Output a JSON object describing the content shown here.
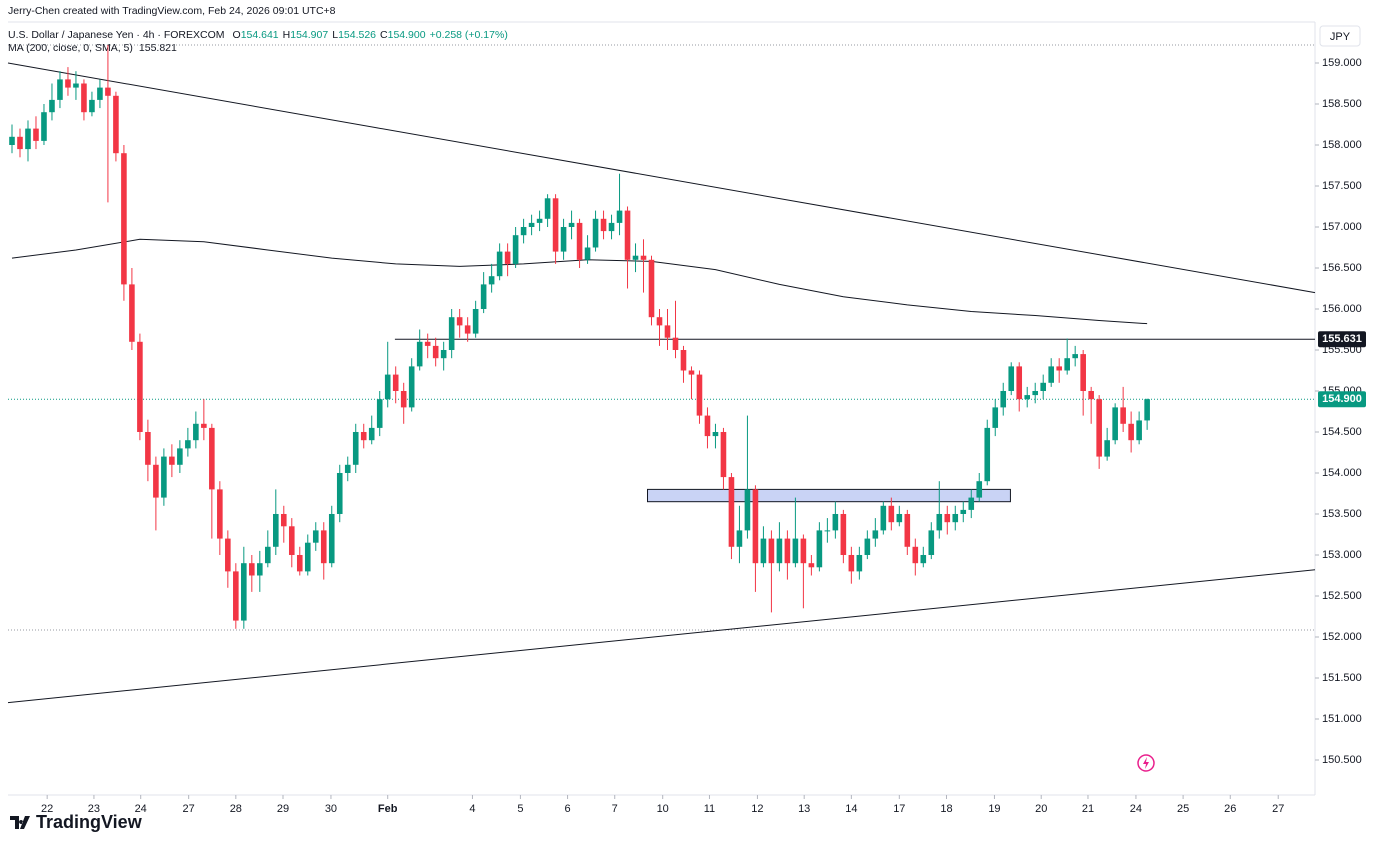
{
  "header": {
    "credit": "Jerry-Chen created with TradingView.com, Feb 24, 2026 09:01 UTC+8"
  },
  "legend": {
    "symbol": "U.S. Dollar / Japanese Yen · 4h · FOREXCOM",
    "ohlc": [
      {
        "k": "O",
        "v": "154.641"
      },
      {
        "k": "H",
        "v": "154.907"
      },
      {
        "k": "L",
        "v": "154.526"
      },
      {
        "k": "C",
        "v": "154.900"
      }
    ],
    "change": "+0.258 (+0.17%)",
    "ma_label": "MA (200, close, 0, SMA, 5)",
    "ma_value": "155.821"
  },
  "currency": "JPY",
  "brand": "TradingView",
  "chart_data": {
    "type": "candlestick",
    "up_color": "#089981",
    "down_color": "#f23645",
    "xlim": [
      -0.5,
      163
    ],
    "ylim": [
      150.073,
      159.5
    ],
    "yticks": [
      {
        "value": 150.5,
        "label": "150.500"
      },
      {
        "value": 151,
        "label": "151.000"
      },
      {
        "value": 151.5,
        "label": "151.500"
      },
      {
        "value": 152,
        "label": "152.000"
      },
      {
        "value": 152.5,
        "label": "152.500"
      },
      {
        "value": 153,
        "label": "153.000"
      },
      {
        "value": 153.5,
        "label": "153.500"
      },
      {
        "value": 154,
        "label": "154.000"
      },
      {
        "value": 154.5,
        "label": "154.500"
      },
      {
        "value": 155,
        "label": "155.000"
      },
      {
        "value": 155.5,
        "label": "155.500"
      },
      {
        "value": 156,
        "label": "156.000"
      },
      {
        "value": 156.5,
        "label": "156.500"
      },
      {
        "value": 157,
        "label": "157.000"
      },
      {
        "value": 157.5,
        "label": "157.500"
      },
      {
        "value": 158,
        "label": "158.000"
      },
      {
        "value": 158.5,
        "label": "158.500"
      },
      {
        "value": 159,
        "label": "159.000"
      }
    ],
    "xticks": [
      {
        "value": 4.4,
        "label": "22"
      },
      {
        "value": 10.25,
        "label": "23"
      },
      {
        "value": 16.1,
        "label": "24"
      },
      {
        "value": 22.1,
        "label": "27"
      },
      {
        "value": 28,
        "label": "28"
      },
      {
        "value": 33.9,
        "label": "29"
      },
      {
        "value": 39.9,
        "label": "30"
      },
      {
        "value": 47,
        "label": "Feb"
      },
      {
        "value": 57.6,
        "label": "4"
      },
      {
        "value": 63.6,
        "label": "5"
      },
      {
        "value": 69.5,
        "label": "6"
      },
      {
        "value": 75.4,
        "label": "7"
      },
      {
        "value": 81.4,
        "label": "10"
      },
      {
        "value": 87.25,
        "label": "11"
      },
      {
        "value": 93.25,
        "label": "12"
      },
      {
        "value": 99.1,
        "label": "13"
      },
      {
        "value": 105,
        "label": "14"
      },
      {
        "value": 111,
        "label": "17"
      },
      {
        "value": 116.9,
        "label": "18"
      },
      {
        "value": 122.9,
        "label": "19"
      },
      {
        "value": 128.75,
        "label": "20"
      },
      {
        "value": 134.6,
        "label": "21"
      },
      {
        "value": 140.6,
        "label": "24"
      },
      {
        "value": 146.5,
        "label": "25"
      },
      {
        "value": 152.4,
        "label": "26"
      },
      {
        "value": 158.4,
        "label": "27"
      }
    ],
    "ohlc": [
      [
        158.0,
        158.25,
        157.9,
        158.1
      ],
      [
        158.1,
        158.2,
        157.85,
        157.95
      ],
      [
        157.95,
        158.3,
        157.8,
        158.2
      ],
      [
        158.2,
        158.35,
        157.95,
        158.05
      ],
      [
        158.05,
        158.5,
        158.0,
        158.4
      ],
      [
        158.4,
        158.75,
        158.3,
        158.55
      ],
      [
        158.55,
        158.9,
        158.45,
        158.8
      ],
      [
        158.8,
        158.95,
        158.6,
        158.7
      ],
      [
        158.7,
        158.9,
        158.55,
        158.75
      ],
      [
        158.75,
        158.8,
        158.3,
        158.4
      ],
      [
        158.4,
        158.65,
        158.35,
        158.55
      ],
      [
        158.55,
        158.8,
        158.45,
        158.7
      ],
      [
        158.7,
        159.22,
        157.3,
        158.6
      ],
      [
        158.6,
        158.65,
        157.8,
        157.9
      ],
      [
        157.9,
        158.0,
        156.1,
        156.3
      ],
      [
        156.3,
        156.5,
        155.5,
        155.6
      ],
      [
        155.6,
        155.7,
        154.4,
        154.5
      ],
      [
        154.5,
        154.65,
        153.9,
        154.1
      ],
      [
        154.1,
        154.2,
        153.3,
        153.7
      ],
      [
        153.7,
        154.3,
        153.6,
        154.2
      ],
      [
        154.2,
        154.35,
        153.95,
        154.1
      ],
      [
        154.1,
        154.4,
        154.0,
        154.3
      ],
      [
        154.3,
        154.55,
        154.2,
        154.4
      ],
      [
        154.4,
        154.75,
        154.3,
        154.6
      ],
      [
        154.6,
        154.9,
        154.4,
        154.55
      ],
      [
        154.55,
        154.6,
        153.2,
        153.8
      ],
      [
        153.8,
        153.9,
        153.0,
        153.2
      ],
      [
        153.2,
        153.3,
        152.6,
        152.8
      ],
      [
        152.8,
        152.9,
        152.1,
        152.2
      ],
      [
        152.2,
        153.1,
        152.1,
        152.9
      ],
      [
        152.9,
        153.0,
        152.55,
        152.75
      ],
      [
        152.75,
        153.05,
        152.55,
        152.9
      ],
      [
        152.9,
        153.3,
        152.85,
        153.1
      ],
      [
        153.1,
        153.8,
        153.0,
        153.5
      ],
      [
        153.5,
        153.6,
        153.15,
        153.35
      ],
      [
        153.35,
        153.45,
        152.85,
        153.0
      ],
      [
        153.0,
        153.1,
        152.75,
        152.8
      ],
      [
        152.8,
        153.25,
        152.75,
        153.15
      ],
      [
        153.15,
        153.4,
        153.05,
        153.3
      ],
      [
        153.3,
        153.4,
        152.7,
        152.9
      ],
      [
        152.9,
        153.6,
        152.85,
        153.5
      ],
      [
        153.5,
        154.1,
        153.4,
        154.0
      ],
      [
        154.0,
        154.2,
        153.9,
        154.1
      ],
      [
        154.1,
        154.6,
        154.0,
        154.5
      ],
      [
        154.5,
        154.6,
        154.3,
        154.4
      ],
      [
        154.4,
        154.7,
        154.35,
        154.55
      ],
      [
        154.55,
        155.0,
        154.45,
        154.9
      ],
      [
        154.9,
        155.6,
        154.8,
        155.2
      ],
      [
        155.2,
        155.3,
        154.85,
        155.0
      ],
      [
        155.0,
        155.1,
        154.6,
        154.8
      ],
      [
        154.8,
        155.4,
        154.75,
        155.3
      ],
      [
        155.3,
        155.75,
        155.25,
        155.6
      ],
      [
        155.6,
        155.7,
        155.4,
        155.55
      ],
      [
        155.55,
        155.65,
        155.3,
        155.4
      ],
      [
        155.4,
        155.6,
        155.25,
        155.5
      ],
      [
        155.5,
        156.0,
        155.4,
        155.9
      ],
      [
        155.9,
        156.0,
        155.65,
        155.8
      ],
      [
        155.8,
        155.9,
        155.6,
        155.7
      ],
      [
        155.7,
        156.1,
        155.65,
        156.0
      ],
      [
        156.0,
        156.45,
        155.95,
        156.3
      ],
      [
        156.3,
        156.55,
        156.2,
        156.4
      ],
      [
        156.4,
        156.8,
        156.35,
        156.7
      ],
      [
        156.7,
        156.8,
        156.4,
        156.55
      ],
      [
        156.55,
        157.0,
        156.5,
        156.9
      ],
      [
        156.9,
        157.1,
        156.8,
        157.0
      ],
      [
        157.0,
        157.15,
        156.9,
        157.05
      ],
      [
        157.05,
        157.2,
        156.95,
        157.1
      ],
      [
        157.1,
        157.4,
        157.0,
        157.35
      ],
      [
        157.35,
        157.4,
        156.55,
        156.7
      ],
      [
        156.7,
        157.1,
        156.6,
        157.0
      ],
      [
        157.0,
        157.2,
        156.85,
        157.05
      ],
      [
        157.05,
        157.1,
        156.5,
        156.6
      ],
      [
        156.6,
        156.9,
        156.55,
        156.75
      ],
      [
        156.75,
        157.2,
        156.7,
        157.1
      ],
      [
        157.1,
        157.2,
        156.85,
        156.95
      ],
      [
        156.95,
        157.15,
        156.85,
        157.05
      ],
      [
        157.05,
        157.65,
        156.9,
        157.2
      ],
      [
        157.2,
        157.25,
        156.25,
        156.6
      ],
      [
        156.6,
        156.8,
        156.45,
        156.65
      ],
      [
        156.65,
        156.85,
        156.2,
        156.6
      ],
      [
        156.6,
        156.65,
        155.8,
        155.9
      ],
      [
        155.9,
        156.0,
        155.55,
        155.8
      ],
      [
        155.8,
        156.0,
        155.5,
        155.65
      ],
      [
        155.65,
        156.1,
        155.4,
        155.5
      ],
      [
        155.5,
        155.55,
        155.1,
        155.25
      ],
      [
        155.25,
        155.3,
        154.9,
        155.2
      ],
      [
        155.2,
        155.25,
        154.6,
        154.7
      ],
      [
        154.7,
        154.8,
        154.3,
        154.45
      ],
      [
        154.45,
        154.6,
        154.3,
        154.5
      ],
      [
        154.5,
        154.55,
        153.8,
        153.95
      ],
      [
        153.95,
        154.0,
        152.95,
        153.1
      ],
      [
        153.1,
        153.6,
        152.9,
        153.3
      ],
      [
        153.3,
        154.7,
        153.2,
        153.8
      ],
      [
        153.8,
        153.85,
        152.55,
        152.9
      ],
      [
        152.9,
        153.35,
        152.85,
        153.2
      ],
      [
        153.2,
        153.3,
        152.3,
        152.9
      ],
      [
        152.9,
        153.4,
        152.8,
        153.2
      ],
      [
        153.2,
        153.3,
        152.7,
        152.9
      ],
      [
        152.9,
        153.7,
        152.85,
        153.2
      ],
      [
        153.2,
        153.25,
        152.35,
        152.9
      ],
      [
        152.9,
        153.0,
        152.75,
        152.85
      ],
      [
        152.85,
        153.4,
        152.8,
        153.3
      ],
      [
        153.3,
        153.45,
        153.15,
        153.3
      ],
      [
        153.3,
        153.65,
        153.2,
        153.5
      ],
      [
        153.5,
        153.55,
        152.9,
        153.0
      ],
      [
        153.0,
        153.1,
        152.65,
        152.8
      ],
      [
        152.8,
        153.1,
        152.7,
        153.0
      ],
      [
        153.0,
        153.3,
        152.95,
        153.2
      ],
      [
        153.2,
        153.45,
        153.1,
        153.3
      ],
      [
        153.3,
        153.65,
        153.25,
        153.6
      ],
      [
        153.6,
        153.7,
        153.3,
        153.4
      ],
      [
        153.4,
        153.6,
        153.35,
        153.5
      ],
      [
        153.5,
        153.55,
        153.0,
        153.1
      ],
      [
        153.1,
        153.2,
        152.75,
        152.9
      ],
      [
        152.9,
        153.1,
        152.85,
        153.0
      ],
      [
        153.0,
        153.4,
        152.95,
        153.3
      ],
      [
        153.3,
        153.9,
        153.2,
        153.5
      ],
      [
        153.5,
        153.6,
        153.25,
        153.4
      ],
      [
        153.4,
        153.6,
        153.3,
        153.5
      ],
      [
        153.5,
        153.65,
        153.4,
        153.55
      ],
      [
        153.55,
        153.8,
        153.45,
        153.7
      ],
      [
        153.7,
        154.0,
        153.65,
        153.9
      ],
      [
        153.9,
        154.65,
        153.85,
        154.55
      ],
      [
        154.55,
        154.9,
        154.45,
        154.8
      ],
      [
        154.8,
        155.1,
        154.7,
        155.0
      ],
      [
        155.0,
        155.35,
        154.95,
        155.3
      ],
      [
        155.3,
        155.35,
        154.75,
        154.9
      ],
      [
        154.9,
        155.05,
        154.8,
        154.95
      ],
      [
        154.95,
        155.1,
        154.85,
        155.0
      ],
      [
        155.0,
        155.2,
        154.9,
        155.1
      ],
      [
        155.1,
        155.4,
        155.05,
        155.3
      ],
      [
        155.3,
        155.4,
        155.1,
        155.25
      ],
      [
        155.25,
        155.64,
        155.2,
        155.4
      ],
      [
        155.4,
        155.55,
        155.3,
        155.45
      ],
      [
        155.45,
        155.5,
        154.7,
        155.0
      ],
      [
        155.0,
        155.05,
        154.6,
        154.9
      ],
      [
        154.9,
        154.95,
        154.05,
        154.2
      ],
      [
        154.2,
        154.55,
        154.15,
        154.4
      ],
      [
        154.4,
        154.85,
        154.35,
        154.8
      ],
      [
        154.8,
        155.05,
        154.5,
        154.6
      ],
      [
        154.6,
        154.75,
        154.25,
        154.4
      ],
      [
        154.4,
        154.75,
        154.35,
        154.641
      ],
      [
        154.641,
        154.907,
        154.526,
        154.9
      ]
    ],
    "ma": {
      "color": "#131722",
      "x": [
        0,
        8,
        16,
        24,
        32,
        40,
        48,
        56,
        64,
        72,
        80,
        88,
        96,
        104,
        112,
        120,
        128,
        136,
        142
      ],
      "values": [
        156.62,
        156.72,
        156.85,
        156.82,
        156.72,
        156.62,
        156.55,
        156.52,
        156.55,
        156.6,
        156.58,
        156.48,
        156.3,
        156.15,
        156.05,
        155.97,
        155.92,
        155.86,
        155.821
      ]
    },
    "trendlines": [
      {
        "x": [
          -0.5,
          163
        ],
        "values": [
          159.0,
          156.2
        ]
      },
      {
        "x": [
          -0.5,
          163
        ],
        "values": [
          151.2,
          152.82
        ]
      }
    ],
    "level": {
      "value": 155.631,
      "label": "155.631",
      "x": 47.9
    },
    "zone": {
      "x": [
        79.5,
        124.9
      ],
      "values": [
        153.65,
        153.8
      ],
      "color": "#c9d3f5"
    },
    "last_price": {
      "value": 154.9,
      "label": "154.900"
    },
    "range_lines": [
      159.22,
      152.085
    ]
  }
}
